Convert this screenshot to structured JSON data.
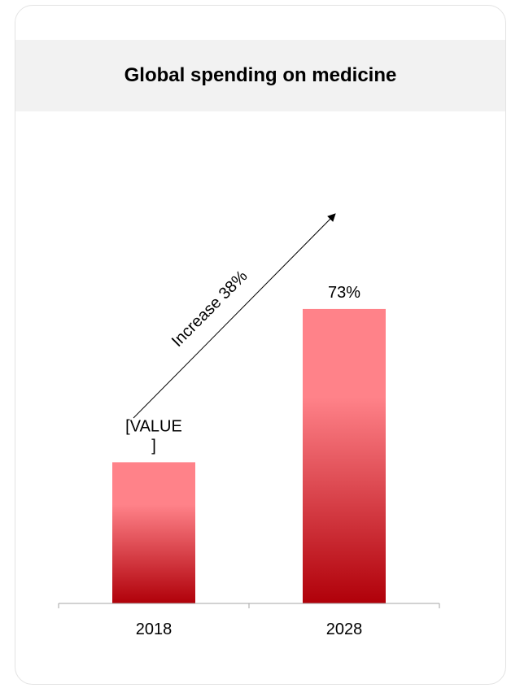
{
  "title": "Global spending on medicine",
  "chart_data": {
    "type": "bar",
    "categories": [
      "2018",
      "2028"
    ],
    "values": [
      35,
      73
    ],
    "data_labels": [
      "[VALUE\n]",
      "73%"
    ],
    "annotation": "Increase 38%",
    "title": "Global spending on medicine",
    "xlabel": "",
    "ylabel": "",
    "ylim": [
      0,
      100
    ],
    "grid": false,
    "colors": {
      "bar_top": "#ff8289",
      "bar_bottom": "#b00009",
      "axis": "#a6a6a6",
      "text": "#000000"
    }
  }
}
